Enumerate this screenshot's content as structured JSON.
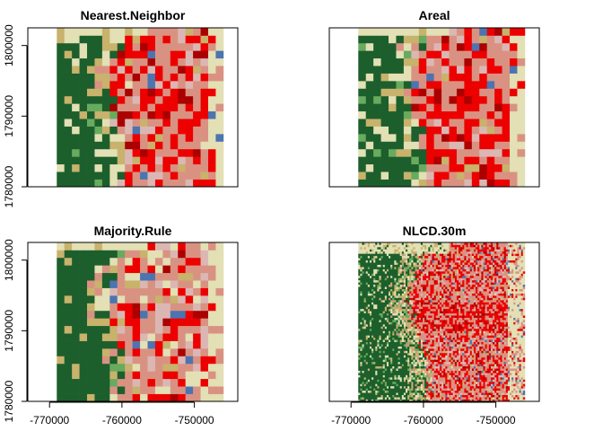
{
  "chart_data": [
    {
      "type": "heatmap",
      "title": "Nearest.Neighbor",
      "x_ticks": [
        -770000,
        -760000,
        -750000
      ],
      "y_ticks": [
        1780000,
        1790000,
        1800000
      ],
      "xlim": [
        -773000,
        -744000
      ],
      "ylim": [
        1780000,
        1802500
      ],
      "show_x_ticks": false,
      "show_y_ticks": true
    },
    {
      "type": "heatmap",
      "title": "Areal",
      "x_ticks": [
        -770000,
        -760000,
        -750000
      ],
      "y_ticks": [
        1780000,
        1790000,
        1800000
      ],
      "xlim": [
        -773000,
        -744000
      ],
      "ylim": [
        1780000,
        1802500
      ],
      "show_x_ticks": false,
      "show_y_ticks": false
    },
    {
      "type": "heatmap",
      "title": "Majority.Rule",
      "x_ticks": [
        -770000,
        -760000,
        -750000
      ],
      "y_ticks": [
        1780000,
        1790000,
        1800000
      ],
      "xlim": [
        -773000,
        -744000
      ],
      "ylim": [
        1780000,
        1802500
      ],
      "show_x_ticks": true,
      "show_y_ticks": true
    },
    {
      "type": "heatmap",
      "title": "NLCD.30m",
      "x_ticks": [
        -770000,
        -760000,
        -750000
      ],
      "y_ticks": [
        1780000,
        1790000,
        1800000
      ],
      "xlim": [
        -773000,
        -744000
      ],
      "ylim": [
        1780000,
        1802500
      ],
      "show_x_ticks": true,
      "show_y_ticks": false
    }
  ],
  "raster": {
    "extent_x": [
      -769000,
      -746000
    ],
    "extent_y": [
      1780000,
      1802500
    ],
    "legend_colors": {
      "1": "#1c5f2c",
      "2": "#e2e0b4",
      "3": "#c8b26c",
      "4": "#dbb7b4",
      "5": "#d99282",
      "6": "#ec0000",
      "7": "#ab0000",
      "8": "#68ab5f",
      "9": "#4c74b0"
    }
  }
}
